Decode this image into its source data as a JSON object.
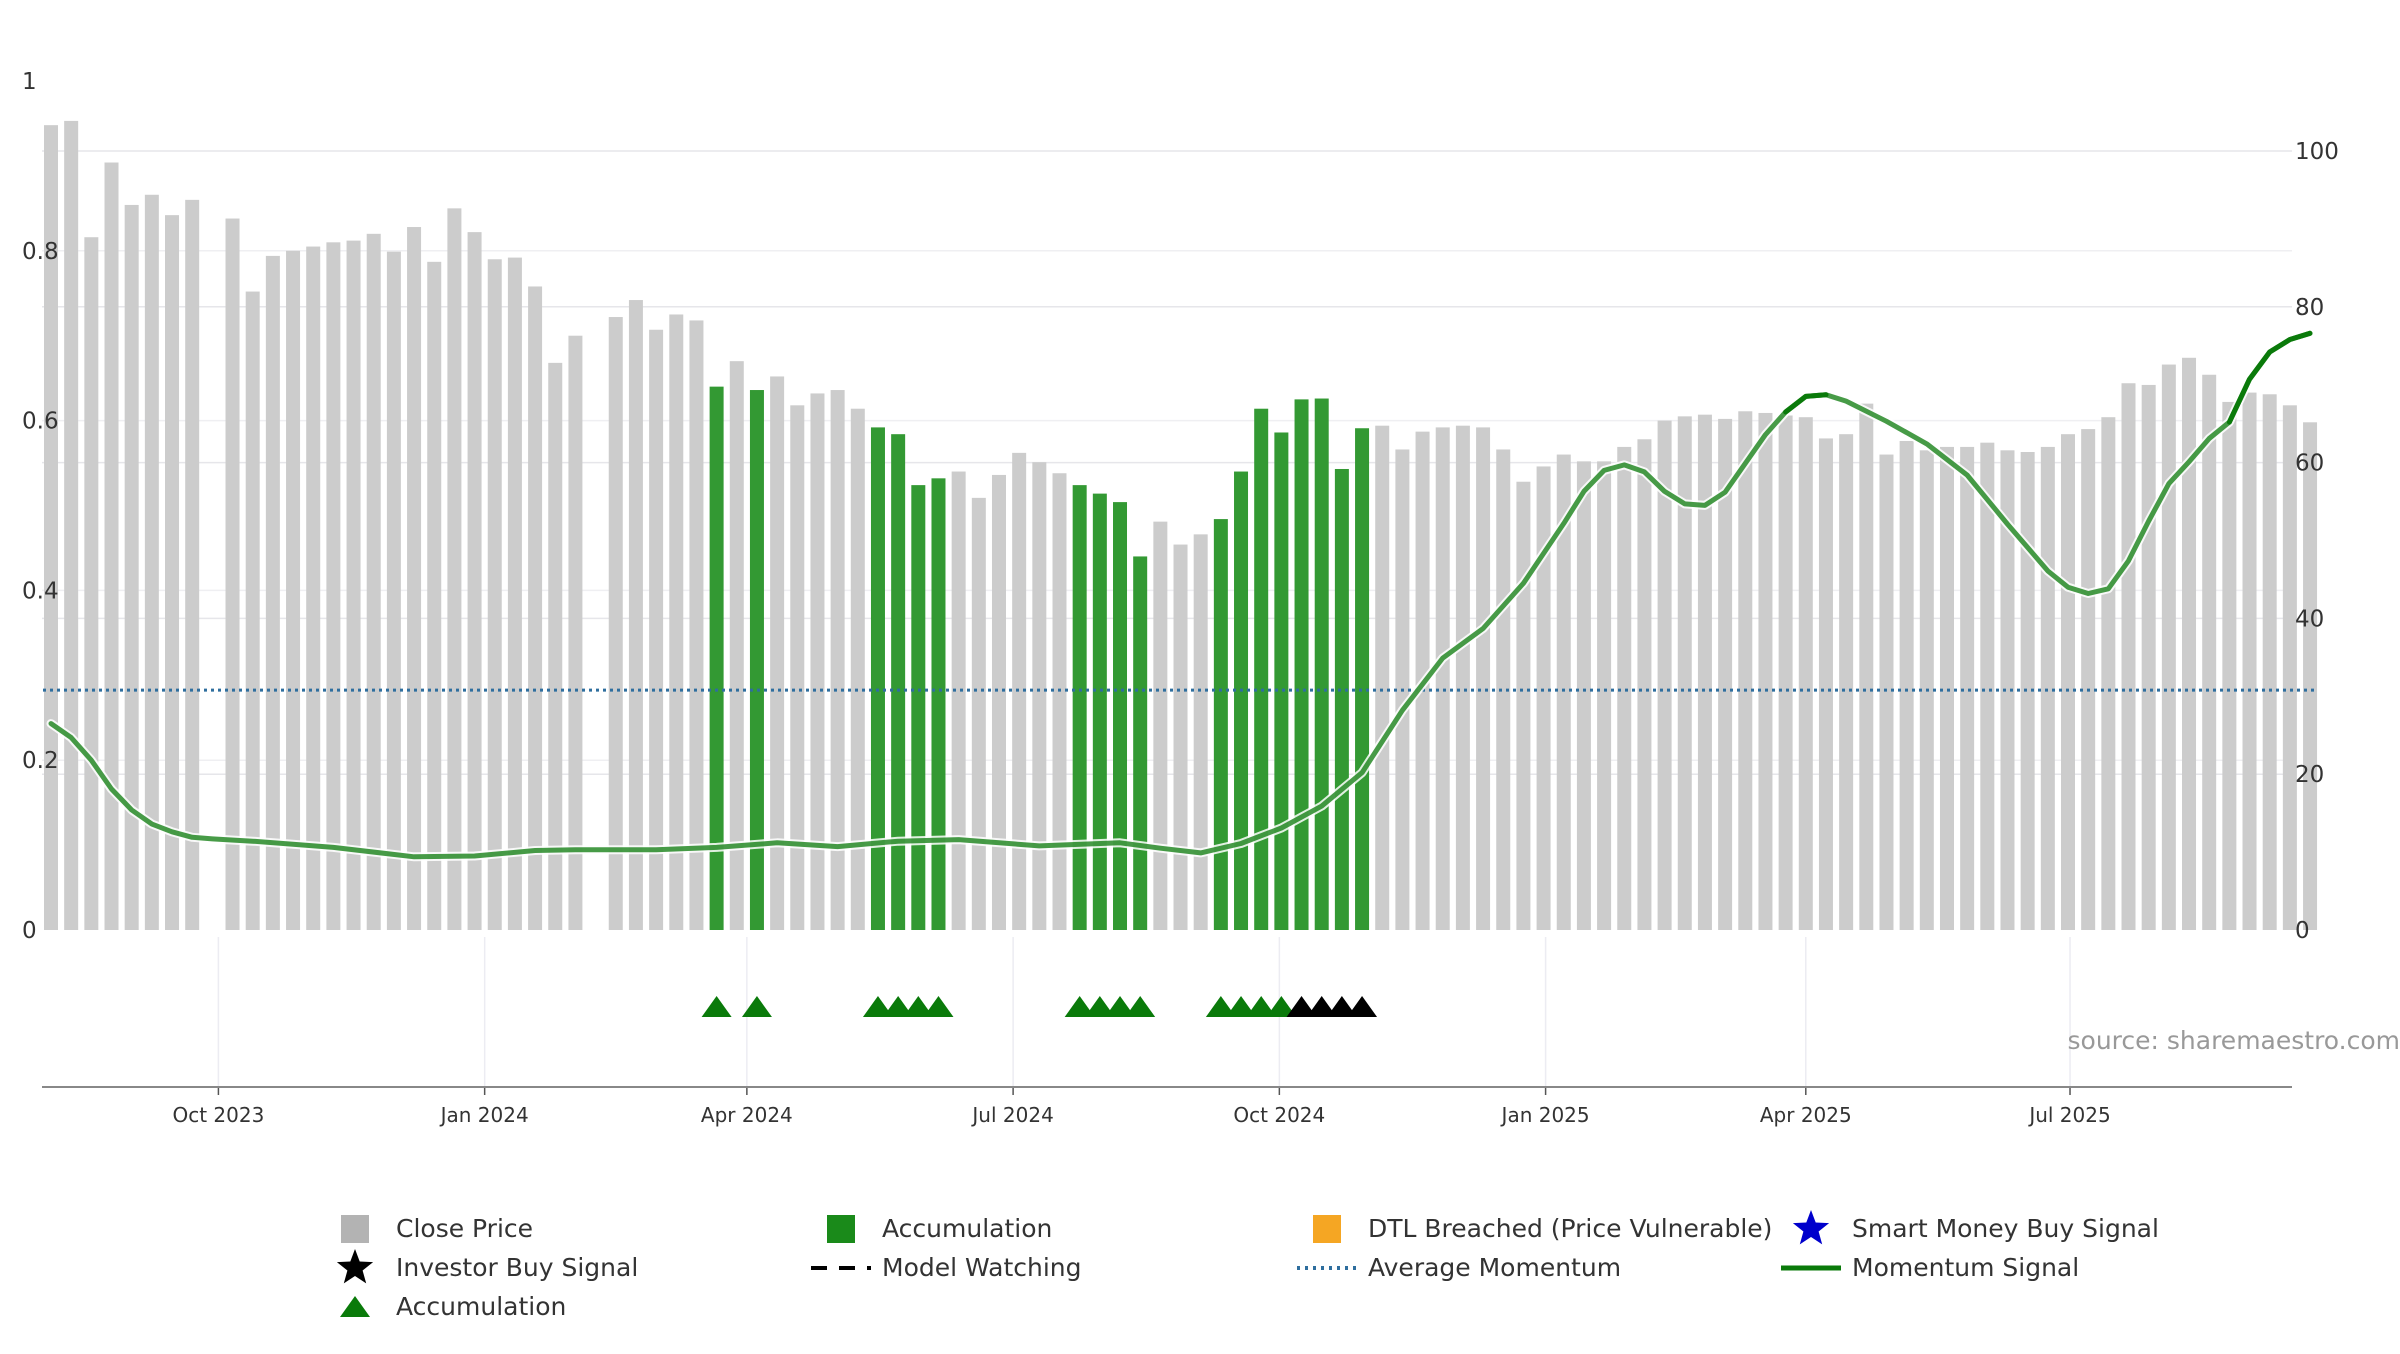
{
  "chart_data": {
    "type": "bar",
    "y_left": {
      "ticks": [
        0,
        0.2,
        0.4,
        0.6,
        0.8,
        1
      ],
      "tick_labels": [
        "0",
        "0.2",
        "0.4",
        "0.6",
        "0.8",
        "1"
      ],
      "range": [
        0,
        1
      ]
    },
    "y_right": {
      "ticks": [
        0,
        20,
        40,
        60,
        80,
        100
      ],
      "range": [
        0,
        109.8
      ]
    },
    "x_ticks": [
      "Oct 2023",
      "Jan 2024",
      "Apr 2024",
      "Jul 2024",
      "Oct 2024",
      "Jan 2025",
      "Apr 2025",
      "Jul 2025"
    ],
    "source_text": "source: sharemaestro.com",
    "close_price": [
      {
        "week": 0,
        "value": 0.948
      },
      {
        "week": 1,
        "value": 0.953
      },
      {
        "week": 2,
        "value": 0.816
      },
      {
        "week": 3,
        "value": 0.904
      },
      {
        "week": 4,
        "value": 0.854
      },
      {
        "week": 5,
        "value": 0.866
      },
      {
        "week": 6,
        "value": 0.842
      },
      {
        "week": 7,
        "value": 0.86
      },
      {
        "week": 9,
        "value": 0.838
      },
      {
        "week": 10,
        "value": 0.752
      },
      {
        "week": 11,
        "value": 0.794
      },
      {
        "week": 12,
        "value": 0.8
      },
      {
        "week": 13,
        "value": 0.805
      },
      {
        "week": 14,
        "value": 0.81
      },
      {
        "week": 15,
        "value": 0.812
      },
      {
        "week": 16,
        "value": 0.82
      },
      {
        "week": 17,
        "value": 0.799
      },
      {
        "week": 18,
        "value": 0.828
      },
      {
        "week": 19,
        "value": 0.787
      },
      {
        "week": 20,
        "value": 0.85
      },
      {
        "week": 21,
        "value": 0.822
      },
      {
        "week": 22,
        "value": 0.79
      },
      {
        "week": 23,
        "value": 0.792
      },
      {
        "week": 24,
        "value": 0.758
      },
      {
        "week": 25,
        "value": 0.668
      },
      {
        "week": 26,
        "value": 0.7
      },
      {
        "week": 28,
        "value": 0.722
      },
      {
        "week": 29,
        "value": 0.742
      },
      {
        "week": 30,
        "value": 0.707
      },
      {
        "week": 31,
        "value": 0.725
      },
      {
        "week": 32,
        "value": 0.718
      },
      {
        "week": 33,
        "value": 0.64
      },
      {
        "week": 34,
        "value": 0.67
      },
      {
        "week": 35,
        "value": 0.636
      },
      {
        "week": 36,
        "value": 0.652
      },
      {
        "week": 37,
        "value": 0.618
      },
      {
        "week": 38,
        "value": 0.632
      },
      {
        "week": 39,
        "value": 0.636
      },
      {
        "week": 40,
        "value": 0.614
      },
      {
        "week": 41,
        "value": 0.592
      },
      {
        "week": 42,
        "value": 0.584
      },
      {
        "week": 43,
        "value": 0.524
      },
      {
        "week": 44,
        "value": 0.532
      },
      {
        "week": 45,
        "value": 0.54
      },
      {
        "week": 46,
        "value": 0.509
      },
      {
        "week": 47,
        "value": 0.536
      },
      {
        "week": 48,
        "value": 0.562
      },
      {
        "week": 49,
        "value": 0.551
      },
      {
        "week": 50,
        "value": 0.538
      },
      {
        "week": 51,
        "value": 0.524
      },
      {
        "week": 52,
        "value": 0.514
      },
      {
        "week": 53,
        "value": 0.504
      },
      {
        "week": 54,
        "value": 0.44
      },
      {
        "week": 55,
        "value": 0.481
      },
      {
        "week": 56,
        "value": 0.454
      },
      {
        "week": 57,
        "value": 0.466
      },
      {
        "week": 58,
        "value": 0.484
      },
      {
        "week": 59,
        "value": 0.54
      },
      {
        "week": 60,
        "value": 0.614
      },
      {
        "week": 61,
        "value": 0.586
      },
      {
        "week": 62,
        "value": 0.625
      },
      {
        "week": 63,
        "value": 0.626
      },
      {
        "week": 64,
        "value": 0.543
      },
      {
        "week": 65,
        "value": 0.591
      },
      {
        "week": 66,
        "value": 0.594
      },
      {
        "week": 67,
        "value": 0.566
      },
      {
        "week": 68,
        "value": 0.587
      },
      {
        "week": 69,
        "value": 0.592
      },
      {
        "week": 70,
        "value": 0.594
      },
      {
        "week": 71,
        "value": 0.592
      },
      {
        "week": 72,
        "value": 0.566
      },
      {
        "week": 73,
        "value": 0.528
      },
      {
        "week": 74,
        "value": 0.546
      },
      {
        "week": 75,
        "value": 0.56
      },
      {
        "week": 76,
        "value": 0.552
      },
      {
        "week": 77,
        "value": 0.552
      },
      {
        "week": 78,
        "value": 0.569
      },
      {
        "week": 79,
        "value": 0.578
      },
      {
        "week": 80,
        "value": 0.6
      },
      {
        "week": 81,
        "value": 0.605
      },
      {
        "week": 82,
        "value": 0.607
      },
      {
        "week": 83,
        "value": 0.602
      },
      {
        "week": 84,
        "value": 0.611
      },
      {
        "week": 85,
        "value": 0.609
      },
      {
        "week": 86,
        "value": 0.606
      },
      {
        "week": 87,
        "value": 0.604
      },
      {
        "week": 88,
        "value": 0.579
      },
      {
        "week": 89,
        "value": 0.584
      },
      {
        "week": 90,
        "value": 0.62
      },
      {
        "week": 91,
        "value": 0.56
      },
      {
        "week": 92,
        "value": 0.576
      },
      {
        "week": 93,
        "value": 0.565
      },
      {
        "week": 94,
        "value": 0.569
      },
      {
        "week": 95,
        "value": 0.569
      },
      {
        "week": 96,
        "value": 0.574
      },
      {
        "week": 97,
        "value": 0.565
      },
      {
        "week": 98,
        "value": 0.563
      },
      {
        "week": 99,
        "value": 0.569
      },
      {
        "week": 100,
        "value": 0.584
      },
      {
        "week": 101,
        "value": 0.59
      },
      {
        "week": 102,
        "value": 0.604
      },
      {
        "week": 103,
        "value": 0.644
      },
      {
        "week": 104,
        "value": 0.642
      },
      {
        "week": 105,
        "value": 0.666
      },
      {
        "week": 106,
        "value": 0.674
      },
      {
        "week": 107,
        "value": 0.654
      },
      {
        "week": 108,
        "value": 0.622
      },
      {
        "week": 109,
        "value": 0.633
      },
      {
        "week": 110,
        "value": 0.631
      },
      {
        "week": 111,
        "value": 0.618
      },
      {
        "week": 112,
        "value": 0.598
      }
    ],
    "accumulation_weeks": [
      33,
      35,
      41,
      42,
      43,
      44,
      51,
      52,
      53,
      54,
      58,
      59,
      60,
      61,
      62,
      63,
      64,
      65
    ],
    "accumulation_marker_weeks": [
      33,
      35,
      41,
      42,
      43,
      44,
      51,
      52,
      53,
      54,
      58,
      59,
      60,
      61
    ],
    "investor_buy_signal_weeks": [
      62,
      63,
      64,
      65
    ],
    "average_momentum": 30.8,
    "momentum_signal": [
      {
        "week": 0,
        "value": 26.5
      },
      {
        "week": 1,
        "value": 24.7
      },
      {
        "week": 2,
        "value": 21.8
      },
      {
        "week": 3,
        "value": 18.1
      },
      {
        "week": 4,
        "value": 15.4
      },
      {
        "week": 5,
        "value": 13.6
      },
      {
        "week": 6,
        "value": 12.6
      },
      {
        "week": 7,
        "value": 11.9
      },
      {
        "week": 8,
        "value": 11.7
      },
      {
        "week": 10,
        "value": 11.4
      },
      {
        "week": 14,
        "value": 10.6
      },
      {
        "week": 18,
        "value": 9.4
      },
      {
        "week": 21,
        "value": 9.5
      },
      {
        "week": 24,
        "value": 10.2
      },
      {
        "week": 26,
        "value": 10.3
      },
      {
        "week": 30,
        "value": 10.3
      },
      {
        "week": 33,
        "value": 10.6
      },
      {
        "week": 36,
        "value": 11.2
      },
      {
        "week": 39,
        "value": 10.7
      },
      {
        "week": 42,
        "value": 11.4
      },
      {
        "week": 45,
        "value": 11.6
      },
      {
        "week": 49,
        "value": 10.8
      },
      {
        "week": 53,
        "value": 11.2
      },
      {
        "week": 55,
        "value": 10.5
      },
      {
        "week": 57,
        "value": 9.9
      },
      {
        "week": 59,
        "value": 11.1
      },
      {
        "week": 61,
        "value": 13.1
      },
      {
        "week": 63,
        "value": 15.9
      },
      {
        "week": 65,
        "value": 20.2
      },
      {
        "week": 67,
        "value": 28.2
      },
      {
        "week": 69,
        "value": 34.9
      },
      {
        "week": 71,
        "value": 38.7
      },
      {
        "week": 73,
        "value": 44.5
      },
      {
        "week": 75,
        "value": 52.2
      },
      {
        "week": 76,
        "value": 56.3
      },
      {
        "week": 77,
        "value": 59.0
      },
      {
        "week": 78,
        "value": 59.7
      },
      {
        "week": 79,
        "value": 58.8
      },
      {
        "week": 80,
        "value": 56.3
      },
      {
        "week": 81,
        "value": 54.7
      },
      {
        "week": 82,
        "value": 54.5
      },
      {
        "week": 83,
        "value": 56.2
      },
      {
        "week": 85,
        "value": 63.6
      },
      {
        "week": 86,
        "value": 66.5
      },
      {
        "week": 87,
        "value": 68.5
      },
      {
        "week": 88,
        "value": 68.7
      },
      {
        "week": 89,
        "value": 67.9
      },
      {
        "week": 91,
        "value": 65.3
      },
      {
        "week": 93,
        "value": 62.4
      },
      {
        "week": 95,
        "value": 58.4
      },
      {
        "week": 97,
        "value": 52.1
      },
      {
        "week": 99,
        "value": 46.1
      },
      {
        "week": 100,
        "value": 44.0
      },
      {
        "week": 101,
        "value": 43.2
      },
      {
        "week": 102,
        "value": 43.8
      },
      {
        "week": 103,
        "value": 47.4
      },
      {
        "week": 104,
        "value": 52.5
      },
      {
        "week": 105,
        "value": 57.3
      },
      {
        "week": 106,
        "value": 60.1
      },
      {
        "week": 107,
        "value": 63.1
      },
      {
        "week": 108,
        "value": 65.2
      },
      {
        "week": 109,
        "value": 70.7
      },
      {
        "week": 110,
        "value": 74.2
      },
      {
        "week": 111,
        "value": 75.8
      },
      {
        "week": 112,
        "value": 76.6
      }
    ],
    "momentum_gaps_after_weeks": [
      8,
      27
    ],
    "legend": [
      {
        "key": "close",
        "label": "Close Price",
        "symbol": "square",
        "color": "#b3b3b3"
      },
      {
        "key": "acc_bar",
        "label": "Accumulation",
        "symbol": "square",
        "color": "#1a8a1a"
      },
      {
        "key": "dtl",
        "label": "DTL Breached (Price Vulnerable)",
        "symbol": "square",
        "color": "#f5a623"
      },
      {
        "key": "smart",
        "label": "Smart Money Buy Signal",
        "symbol": "star",
        "color": "#0000cc"
      },
      {
        "key": "investor",
        "label": "Investor Buy Signal",
        "symbol": "star",
        "color": "#000000"
      },
      {
        "key": "watching",
        "label": "Model Watching",
        "symbol": "dash",
        "color": "#000000"
      },
      {
        "key": "avg",
        "label": "Average Momentum",
        "symbol": "dotted",
        "color": "#2e6e9e"
      },
      {
        "key": "momentum",
        "label": "Momentum Signal",
        "symbol": "line",
        "color": "#0a7a0a"
      },
      {
        "key": "acc_tri",
        "label": "Accumulation",
        "symbol": "triangle",
        "color": "#0a7a0a"
      }
    ],
    "colors": {
      "close": "#cccccc",
      "accumulation": "#339933",
      "momentum": "#0a7a0a",
      "average": "#2e6e9e",
      "investor": "#000000"
    }
  }
}
